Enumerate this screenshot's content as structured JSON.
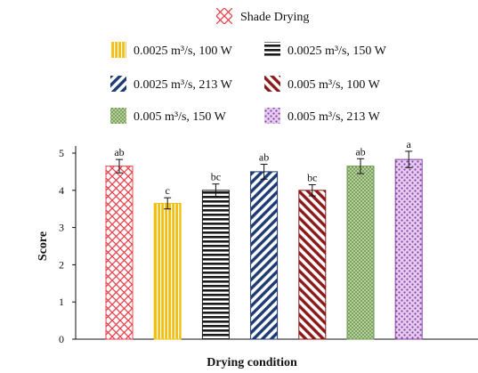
{
  "chart_data": {
    "type": "bar",
    "title": "",
    "xlabel": "Drying condition",
    "ylabel": "Score",
    "ylim": [
      0,
      5
    ],
    "yticks": [
      0,
      1,
      2,
      3,
      4,
      5
    ],
    "grid": false,
    "legend_position": "top",
    "series": [
      {
        "name": "Shade Drying",
        "value": 4.65,
        "error": 0.18,
        "sig": "ab",
        "color": "#e8414b",
        "pattern": "crosshatch"
      },
      {
        "name": "0.0025 m³/s, 100 W",
        "value": 3.65,
        "error": 0.15,
        "sig": "c",
        "color": "#f2c014",
        "pattern": "vertical-lines"
      },
      {
        "name": "0.0025 m³/s, 150 W",
        "value": 4.0,
        "error": 0.17,
        "sig": "bc",
        "color": "#1a1a1a",
        "pattern": "horizontal-lines"
      },
      {
        "name": "0.0025 m³/s, 213 W",
        "value": 4.5,
        "error": 0.2,
        "sig": "ab",
        "color": "#1f3b73",
        "pattern": "diagonal-lines"
      },
      {
        "name": "0.005 m³/s, 100 W",
        "value": 4.0,
        "error": 0.15,
        "sig": "bc",
        "color": "#8b1a1a",
        "pattern": "diagonal-lines"
      },
      {
        "name": "0.005 m³/s, 150 W",
        "value": 4.65,
        "error": 0.2,
        "sig": "ab",
        "color": "#6e9a4e",
        "pattern": "fine-crosshatch"
      },
      {
        "name": "0.005 m³/s, 213 W",
        "value": 4.83,
        "error": 0.22,
        "sig": "a",
        "color": "#8b3fa8",
        "pattern": "dots"
      }
    ]
  }
}
